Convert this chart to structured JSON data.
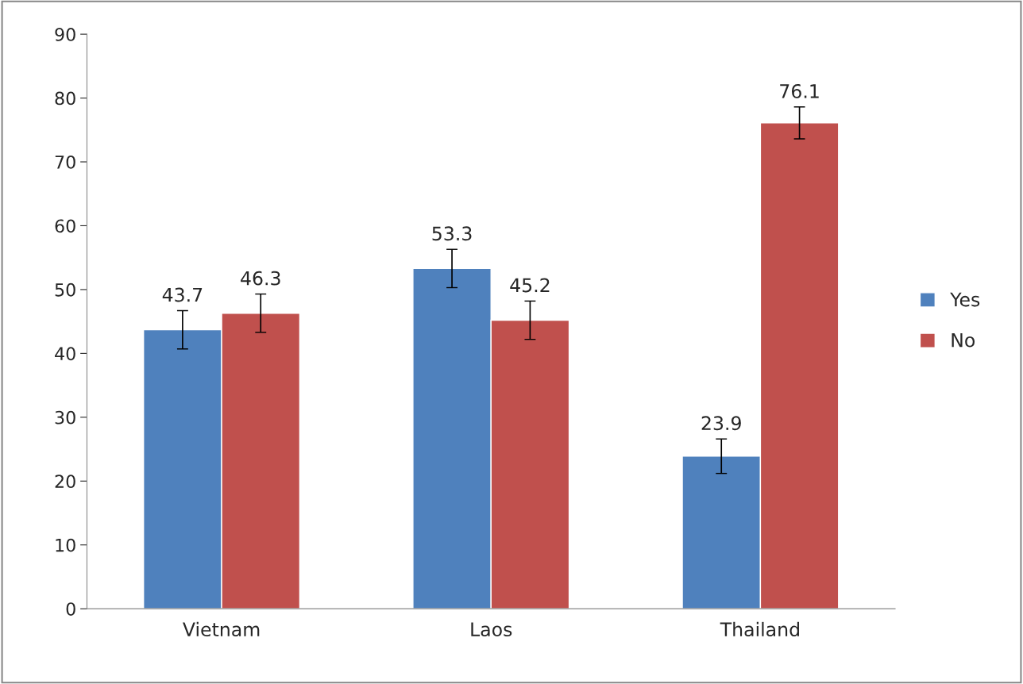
{
  "chart_data": {
    "type": "bar",
    "categories": [
      "Vietnam",
      "Laos",
      "Thailand"
    ],
    "series": [
      {
        "name": "Yes",
        "color": "#4f81bd",
        "values": [
          43.7,
          53.3,
          23.9
        ],
        "errors": [
          3,
          3,
          2.7
        ]
      },
      {
        "name": "No",
        "color": "#c0504d",
        "values": [
          46.3,
          45.2,
          76.1
        ],
        "errors": [
          3,
          3,
          2.5
        ]
      }
    ],
    "ylim": [
      0,
      90
    ],
    "yticks": [
      0,
      10,
      20,
      30,
      40,
      50,
      60,
      70,
      80,
      90
    ],
    "grid": false,
    "legend": "right",
    "data_labels": true
  }
}
